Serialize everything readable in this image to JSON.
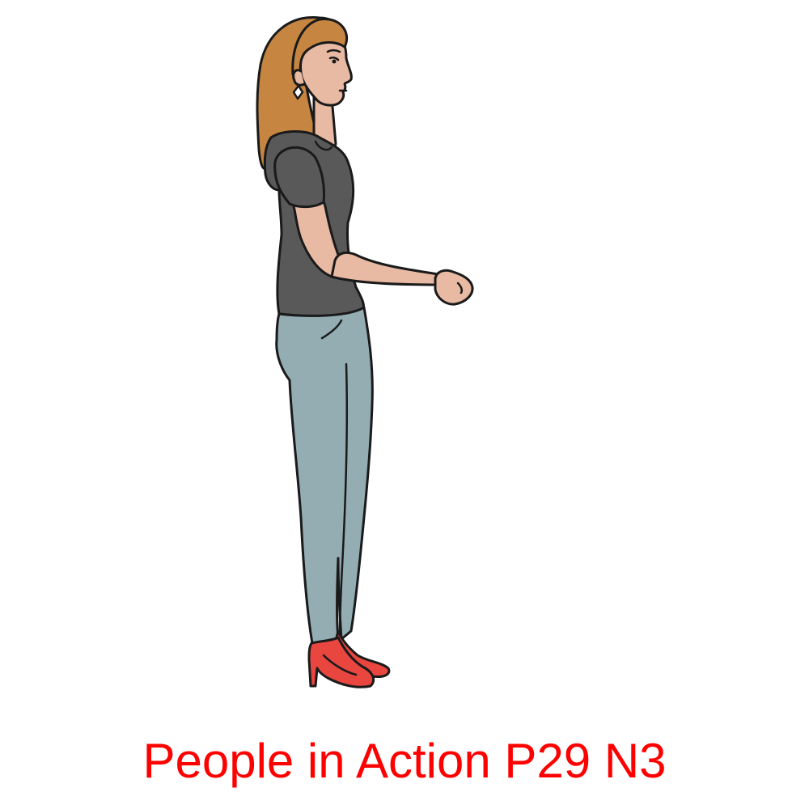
{
  "caption": "People in Action P29 N3",
  "colors": {
    "caption": "#ff0000",
    "hair": "#c68642",
    "skin": "#e8b9a3",
    "shirt": "#595959",
    "jeans": "#93adb3",
    "shoes": "#e8463f",
    "outline": "#1a1a1a",
    "background": "#ffffff"
  },
  "illustration": {
    "subject": "woman-standing-profile",
    "icon": "person-standing-arms-forward-illustration"
  }
}
